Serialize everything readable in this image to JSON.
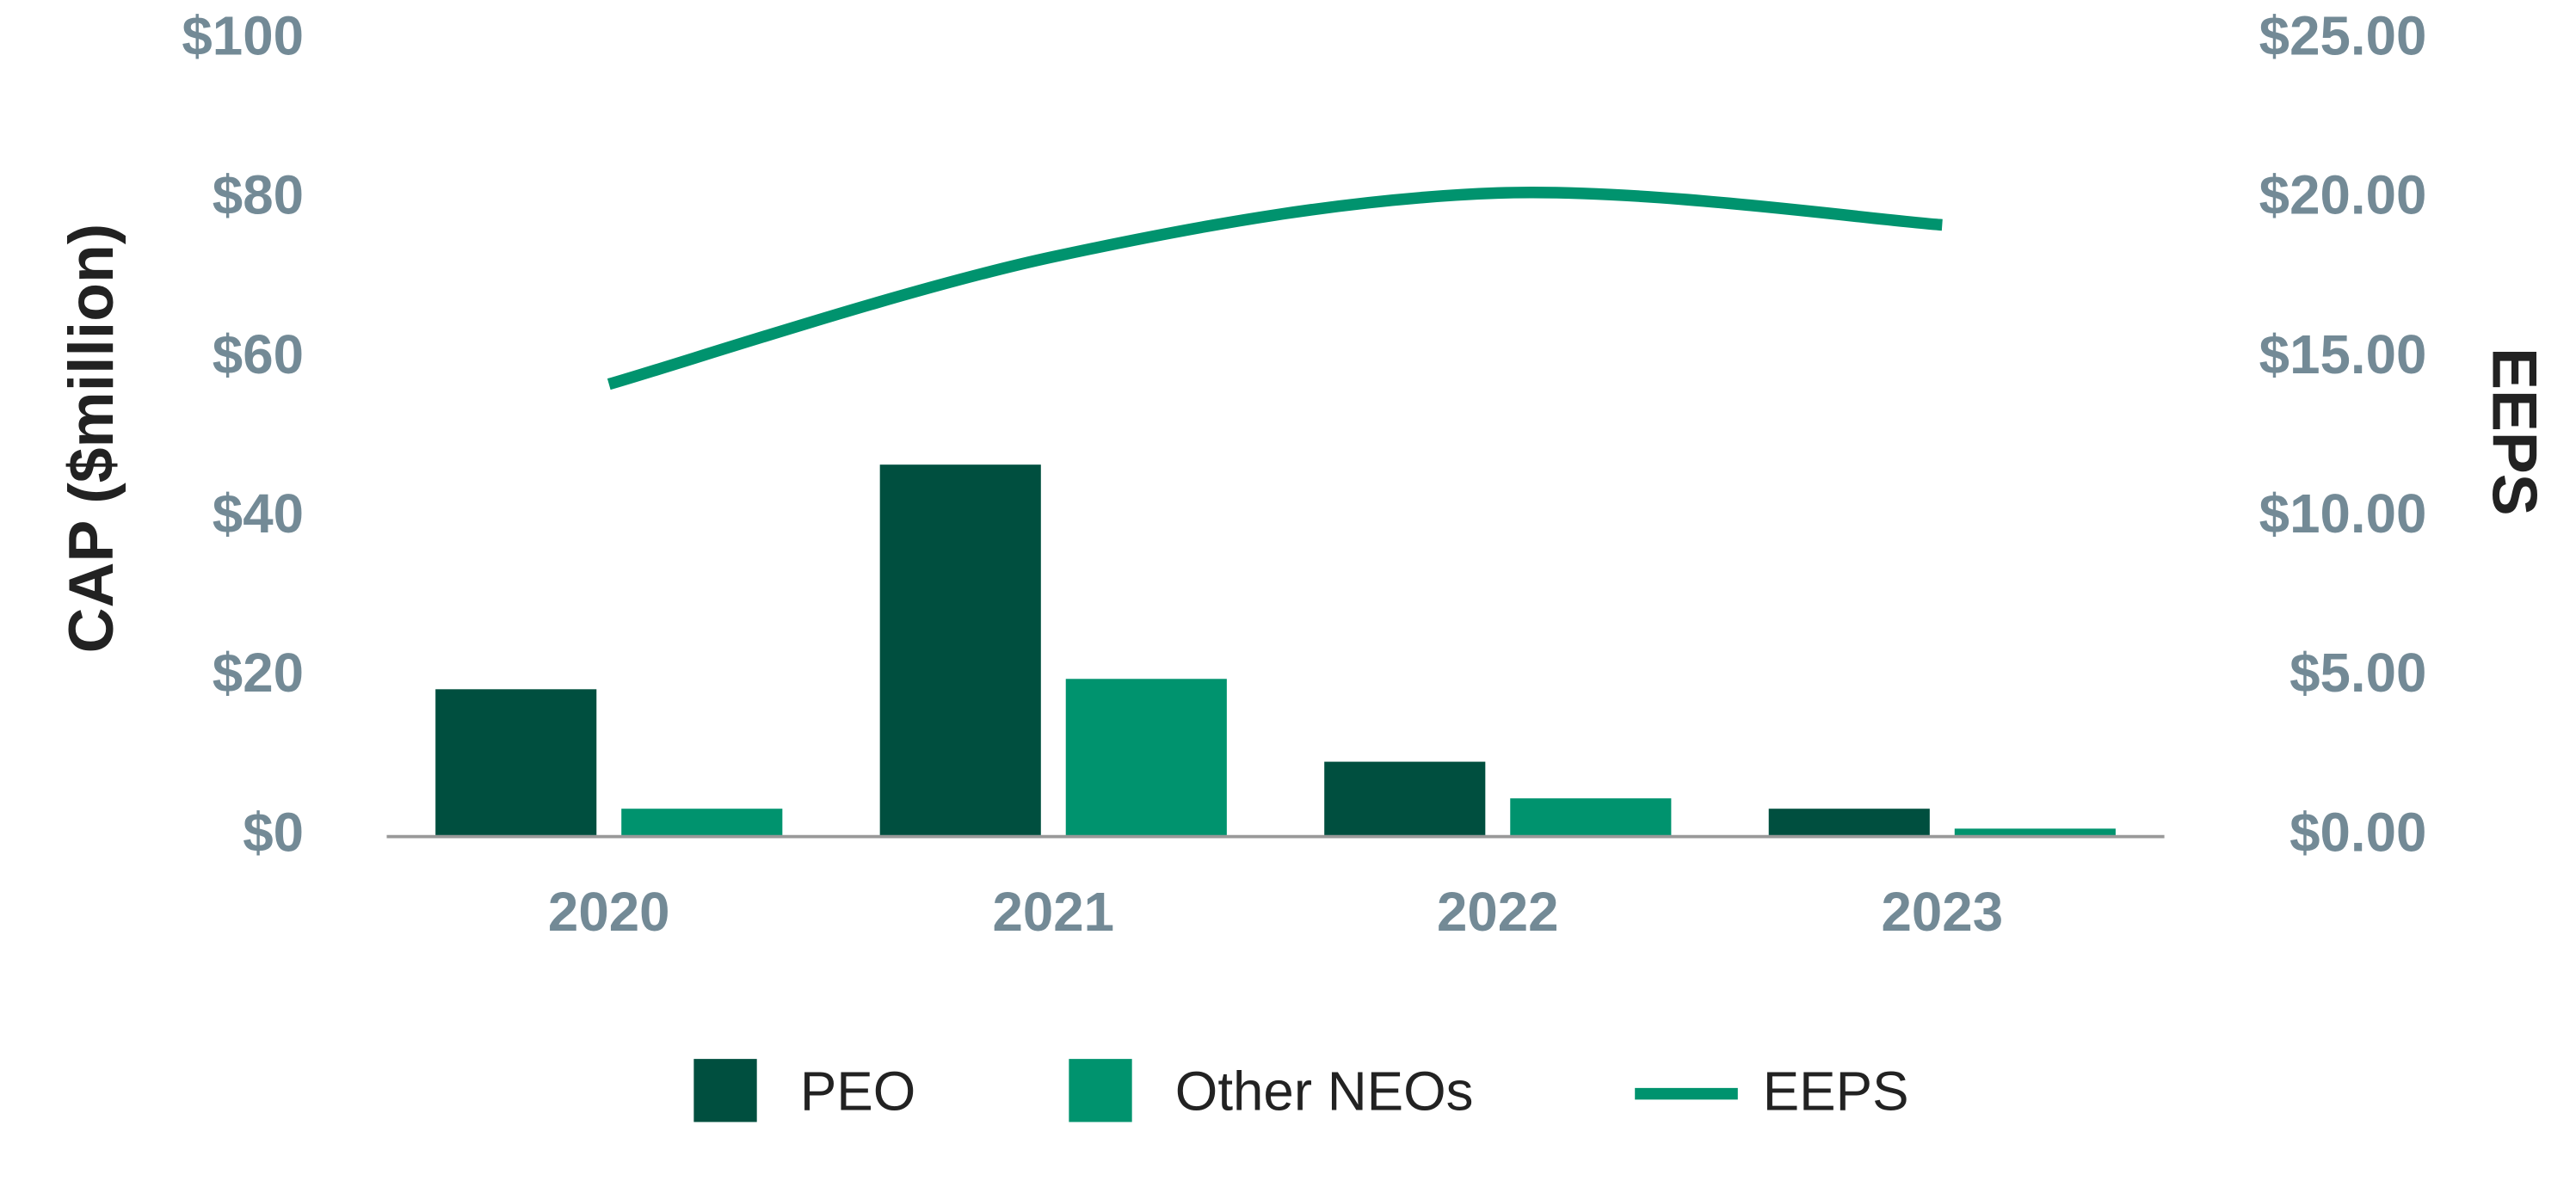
{
  "chart_data": {
    "type": "bar_line",
    "categories": [
      "2020",
      "2021",
      "2022",
      "2023"
    ],
    "series": [
      {
        "name": "PEO",
        "type": "bar",
        "color": "#004f3f",
        "values": [
          18.5,
          46.7,
          9.4,
          3.5
        ]
      },
      {
        "name": "Other NEOs",
        "type": "bar",
        "color": "#00936e",
        "values": [
          3.5,
          19.8,
          4.8,
          1.0
        ]
      },
      {
        "name": "EEPS",
        "type": "line",
        "axis": "y2",
        "color": "#00936e",
        "values": [
          14.2,
          18.2,
          20.2,
          19.2
        ]
      }
    ],
    "ylabel": "CAP ($million)",
    "y2label": "EEPS",
    "ylim": [
      0,
      100
    ],
    "yticks": [
      {
        "value": 0,
        "label": "$0"
      },
      {
        "value": 20,
        "label": "$20"
      },
      {
        "value": 40,
        "label": "$40"
      },
      {
        "value": 60,
        "label": "$60"
      },
      {
        "value": 80,
        "label": "$80"
      },
      {
        "value": 100,
        "label": "$100"
      }
    ],
    "y2lim": [
      0,
      25
    ],
    "y2ticks": [
      {
        "value": 0,
        "label": "$0.00"
      },
      {
        "value": 5,
        "label": "$5.00"
      },
      {
        "value": 10,
        "label": "$10.00"
      },
      {
        "value": 15,
        "label": "$15.00"
      },
      {
        "value": 20,
        "label": "$20.00"
      },
      {
        "value": 25,
        "label": "$25.00"
      }
    ],
    "legend": "bottom"
  }
}
